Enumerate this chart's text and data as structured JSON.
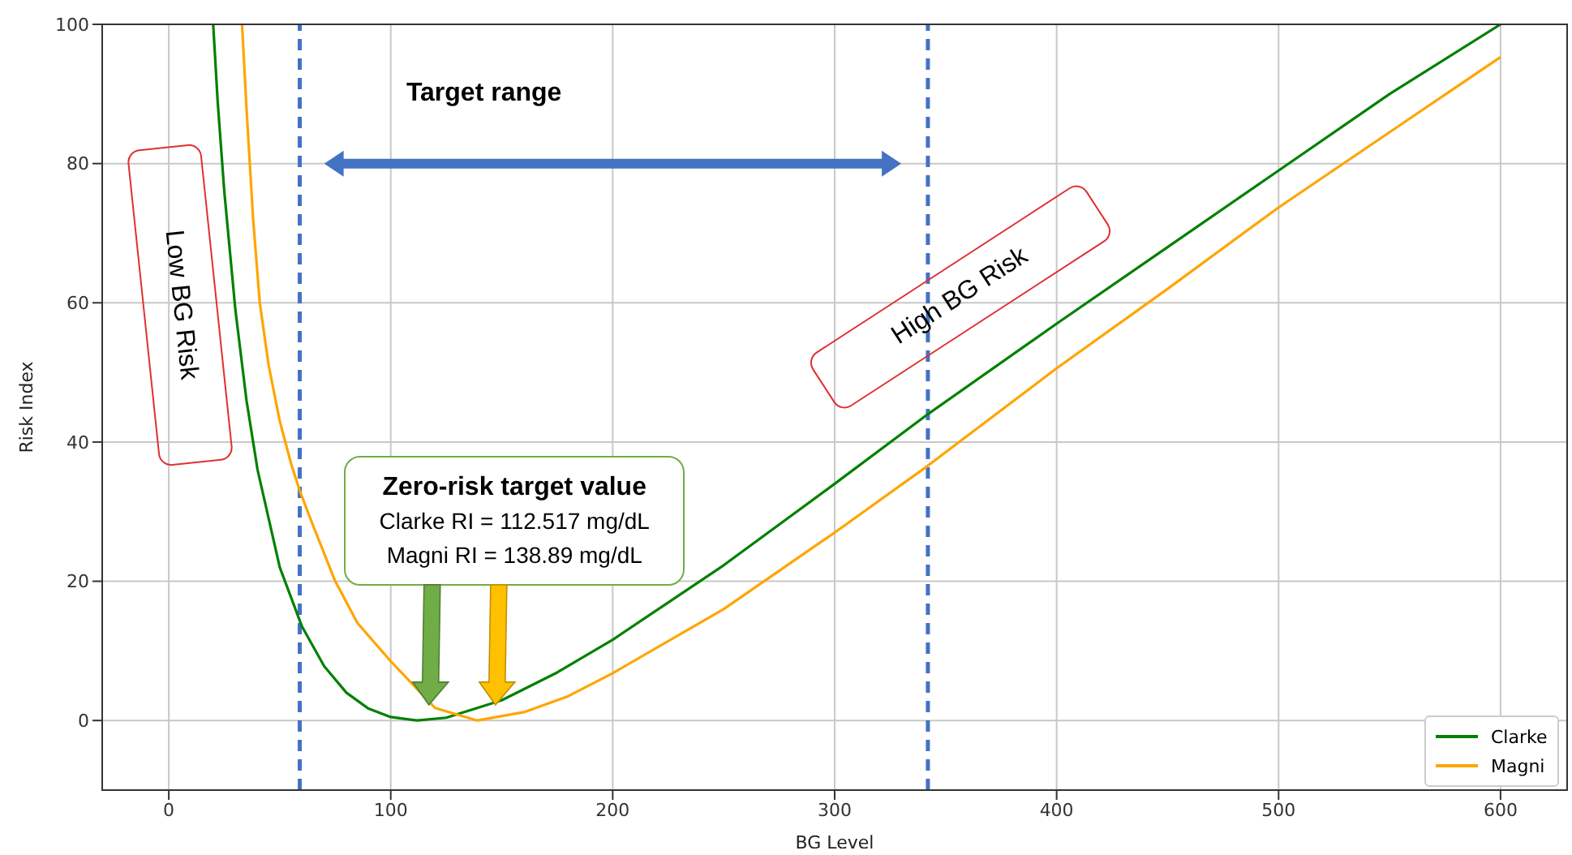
{
  "chart_data": {
    "type": "line",
    "xlabel": "BG Level",
    "ylabel": "Risk Index",
    "xlim": [
      -30,
      630
    ],
    "ylim": [
      -10,
      100
    ],
    "xticks": [
      0,
      100,
      200,
      300,
      400,
      500,
      600
    ],
    "yticks": [
      0,
      20,
      40,
      60,
      80,
      100
    ],
    "grid": true,
    "legend": "bottom right",
    "ref_lines": [
      {
        "axis": "x",
        "value": 59,
        "color": "#4472c4",
        "line_style": "dashed"
      },
      {
        "axis": "x",
        "value": 342,
        "color": "#4472c4",
        "line_style": "dashed"
      }
    ],
    "annotations": [
      "Target range",
      "Low BG Risk",
      "High BG Risk",
      "Zero-risk target value",
      "Clarke RI = 112.517 mg/dL",
      "Magni RI = 138.89 mg/dL"
    ],
    "series": [
      {
        "name": "Clarke",
        "color": "#008000",
        "x": [
          20,
          22,
          25,
          30,
          35,
          40,
          50,
          60,
          70,
          80,
          90,
          100,
          112,
          125,
          150,
          175,
          200,
          250,
          300,
          342,
          400,
          450,
          500,
          550,
          600
        ],
        "values": [
          100,
          89,
          76,
          59,
          46,
          36,
          22,
          13.5,
          7.8,
          4,
          1.7,
          0.5,
          0,
          0.4,
          2.9,
          6.9,
          11.6,
          22.3,
          34,
          44,
          57,
          68,
          79,
          90,
          100
        ]
      },
      {
        "name": "Magni",
        "color": "#ffa500",
        "x": [
          33,
          35,
          38,
          41,
          45,
          50,
          55,
          59,
          65,
          75,
          85,
          100,
          120,
          139,
          160,
          180,
          200,
          250,
          300,
          342,
          400,
          450,
          500,
          550,
          600
        ],
        "values": [
          100,
          88,
          72,
          60,
          51,
          43,
          37,
          33,
          28,
          20,
          14,
          8.5,
          1.8,
          0,
          1.2,
          3.5,
          6.8,
          16,
          27,
          36.6,
          50.6,
          62,
          73.7,
          84.5,
          95.3
        ]
      }
    ]
  }
}
